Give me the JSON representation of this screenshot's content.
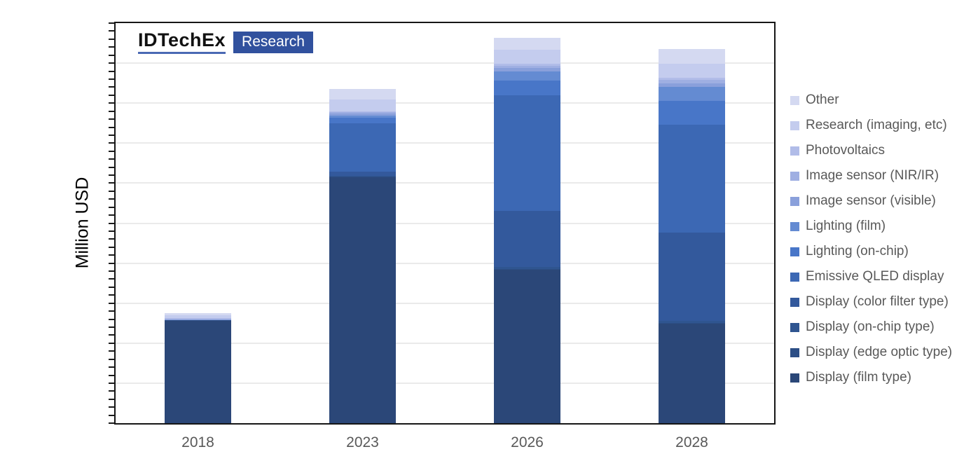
{
  "logo": {
    "brand": "IDTechEx",
    "sub": "Research"
  },
  "axes": {
    "y_title": "Million USD",
    "x_labels": [
      "2018",
      "2023",
      "2026",
      "2028"
    ],
    "y_numeric_labels_shown": false
  },
  "colors": {
    "plot_border": "#161616",
    "gridline": "#eaeaea",
    "axis_text": "#595959",
    "legend_text": "#595959",
    "logo_underline": "#4a69b4",
    "logo_badge_bg": "#31519e"
  },
  "chart_data": {
    "type": "bar",
    "stacked": true,
    "title": "",
    "xlabel": "",
    "ylabel": "Million USD",
    "categories": [
      "2018",
      "2023",
      "2026",
      "2028"
    ],
    "ylim": [
      0,
      1000
    ],
    "gridline_divisions": 10,
    "minor_ticks_per_axis": 50,
    "grid": true,
    "legend_position": "right",
    "values_estimated_from_pixels": true,
    "series": [
      {
        "name": "Display (film type)",
        "color": "#2B4778",
        "values": [
          255,
          615,
          385,
          250
        ]
      },
      {
        "name": "Display (edge optic type)",
        "color": "#2C4E85",
        "values": [
          4,
          2,
          1,
          1
        ]
      },
      {
        "name": "Display (on-chip type)",
        "color": "#2F5590",
        "values": [
          0,
          2,
          4,
          5
        ]
      },
      {
        "name": "Display (color filter type)",
        "color": "#33599C",
        "values": [
          0,
          10,
          140,
          220
        ]
      },
      {
        "name": "Emissive QLED display",
        "color": "#3C68B4",
        "values": [
          0,
          120,
          290,
          270
        ]
      },
      {
        "name": "Lighting (on-chip)",
        "color": "#4876C8",
        "values": [
          0,
          15,
          36,
          60
        ]
      },
      {
        "name": "Lighting (film)",
        "color": "#648BD2",
        "values": [
          0,
          5,
          24,
          34
        ]
      },
      {
        "name": "Image sensor (visible)",
        "color": "#8AA0DB",
        "values": [
          1,
          5,
          8,
          10
        ]
      },
      {
        "name": "Image sensor (NIR/IR)",
        "color": "#9FAFE2",
        "values": [
          1,
          3,
          6,
          8
        ]
      },
      {
        "name": "Photovoltaics",
        "color": "#B1BCE8",
        "values": [
          1,
          3,
          5,
          6
        ]
      },
      {
        "name": "Research (imaging, etc)",
        "color": "#C4CCEE",
        "values": [
          8,
          30,
          35,
          35
        ]
      },
      {
        "name": "Other",
        "color": "#D4D9F1",
        "values": [
          5,
          25,
          30,
          36
        ]
      }
    ],
    "legend_order_top_to_bottom": [
      "Other",
      "Research (imaging, etc)",
      "Photovoltaics",
      "Image sensor (NIR/IR)",
      "Image sensor (visible)",
      "Lighting (film)",
      "Lighting (on-chip)",
      "Emissive QLED display",
      "Display (color filter type)",
      "Display (on-chip type)",
      "Display (edge optic type)",
      "Display (film type)"
    ]
  }
}
